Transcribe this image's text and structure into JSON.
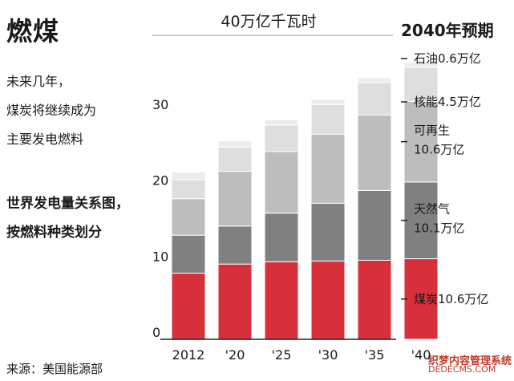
{
  "header": {
    "title": "燃煤",
    "subtitle_lines": [
      "未来几年，",
      "煤炭将继续成为",
      "主要发电燃料"
    ],
    "bold_lines": [
      "世界发电量关系图，",
      "按燃料种类划分"
    ],
    "unit_label": "40万亿千瓦时",
    "projection_label": "2040年预期",
    "source": "来源：美国能源部"
  },
  "watermark": {
    "line1": "织梦内容管理系统",
    "line2": "DEDECMS.COM"
  },
  "colors": {
    "coal": "#d8303a",
    "gas": "#808080",
    "renewables": "#bdbdbd",
    "nuclear": "#dedede",
    "oil": "#ececec",
    "axis": "#222222"
  },
  "chart_data": {
    "type": "bar",
    "stacked": true,
    "categories": [
      "2012",
      "'20",
      "'25",
      "'30",
      "'35",
      "'40"
    ],
    "ylim": [
      0,
      40
    ],
    "yticks": [
      0,
      10,
      20,
      30
    ],
    "series": [
      {
        "key": "coal",
        "values": [
          8.7,
          9.9,
          10.2,
          10.3,
          10.4,
          10.6
        ]
      },
      {
        "key": "gas",
        "values": [
          5.0,
          5.0,
          6.4,
          7.6,
          9.2,
          10.1
        ]
      },
      {
        "key": "renewables",
        "values": [
          4.8,
          7.2,
          8.1,
          9.1,
          9.9,
          10.6
        ]
      },
      {
        "key": "nuclear",
        "values": [
          2.5,
          3.2,
          3.5,
          3.9,
          4.3,
          4.5
        ]
      },
      {
        "key": "oil",
        "values": [
          1.0,
          0.8,
          0.7,
          0.7,
          0.6,
          0.6
        ]
      }
    ],
    "annotations": [
      {
        "series": "oil",
        "lines": [
          "石油0.6万亿"
        ]
      },
      {
        "series": "nuclear",
        "lines": [
          "核能4.5万亿"
        ]
      },
      {
        "series": "renewables",
        "lines": [
          "可再生",
          "10.6万亿"
        ]
      },
      {
        "series": "gas",
        "lines": [
          "天然气",
          "10.1万亿"
        ]
      },
      {
        "series": "coal",
        "lines": [
          "煤炭10.6万亿"
        ]
      }
    ]
  }
}
